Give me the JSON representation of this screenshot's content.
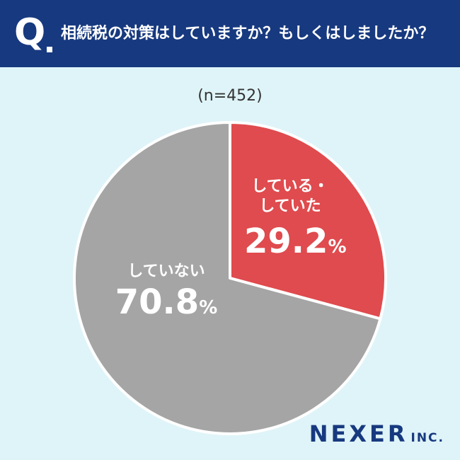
{
  "header": {
    "q_mark": "Q",
    "question": "相続税の対策はしていますか？もしくはしましたか？"
  },
  "sample_size": "(n=452)",
  "logo": {
    "main": "NEXER",
    "sub": "INC."
  },
  "colors": {
    "background": "#dff4f8",
    "header": "#17397f",
    "slice_yes": "#df4b4e",
    "slice_no": "#a5a5a5"
  },
  "chart_data": {
    "type": "pie",
    "title": "相続税の対策はしていますか？もしくはしましたか？",
    "n": 452,
    "slices": [
      {
        "label_line1": "している・",
        "label_line2": "していた",
        "value": 29.2,
        "value_text": "29.2",
        "unit": "%",
        "color": "#df4b4e"
      },
      {
        "label_line1": "していない",
        "label_line2": "",
        "value": 70.8,
        "value_text": "70.8",
        "unit": "%",
        "color": "#a5a5a5"
      }
    ]
  }
}
